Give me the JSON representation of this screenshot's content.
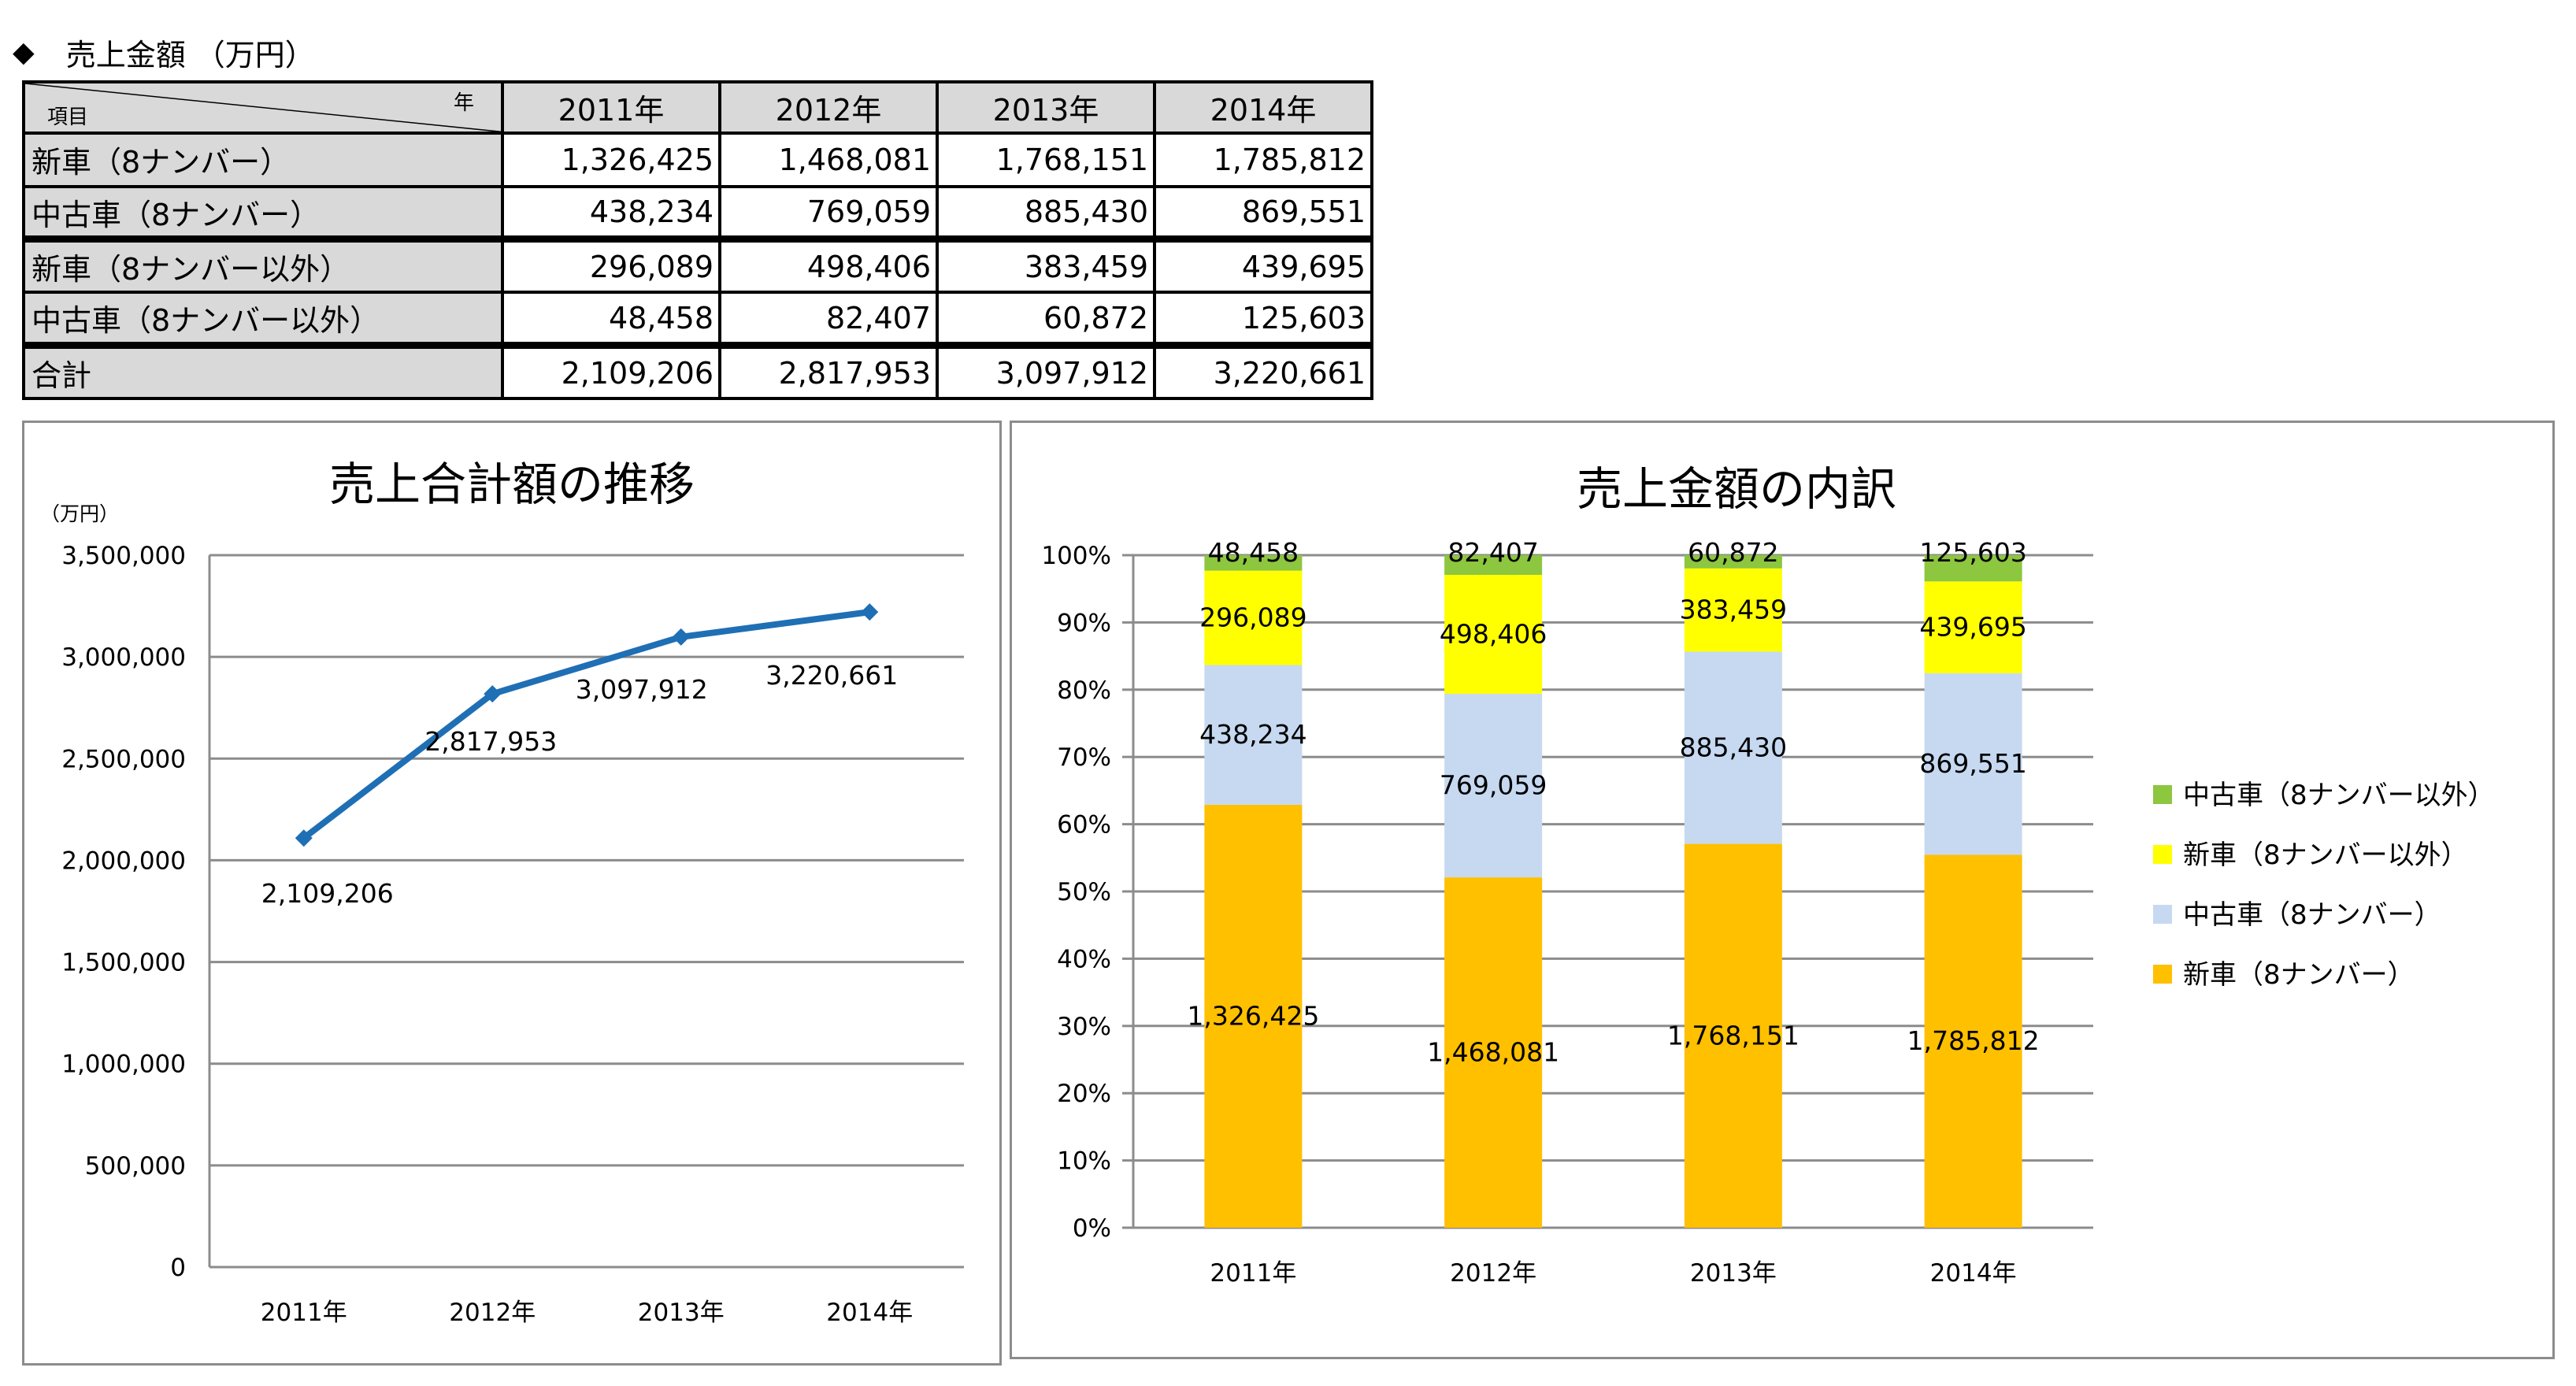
{
  "heading": {
    "marker": "◆",
    "text": "売上金額 （万円）"
  },
  "table": {
    "corner_year": "年",
    "corner_item": "項目",
    "years": [
      "2011年",
      "2012年",
      "2013年",
      "2014年"
    ],
    "rows": [
      {
        "label": "新車（8ナンバー）",
        "values": [
          "1,326,425",
          "1,468,081",
          "1,768,151",
          "1,785,812"
        ]
      },
      {
        "label": "中古車（8ナンバー）",
        "values": [
          "438,234",
          "769,059",
          "885,430",
          "869,551"
        ]
      },
      {
        "label": "新車（8ナンバー以外）",
        "values": [
          "296,089",
          "498,406",
          "383,459",
          "439,695"
        ]
      },
      {
        "label": "中古車（8ナンバー以外）",
        "values": [
          "48,458",
          "82,407",
          "60,872",
          "125,603"
        ]
      },
      {
        "label": "合計",
        "values": [
          "2,109,206",
          "2,817,953",
          "3,097,912",
          "3,220,661"
        ]
      }
    ]
  },
  "chart_data": [
    {
      "type": "line",
      "title": "売上合計額の推移",
      "ylabel": "（万円）",
      "xlabel": "",
      "categories": [
        "2011年",
        "2012年",
        "2013年",
        "2014年"
      ],
      "values": [
        2109206,
        2817953,
        3097912,
        3220661
      ],
      "data_labels": [
        "2,109,206",
        "2,817,953",
        "3,097,912",
        "3,220,661"
      ],
      "ylim": [
        0,
        3500000
      ],
      "y_ticks": [
        0,
        500000,
        1000000,
        1500000,
        2000000,
        2500000,
        3000000,
        3500000
      ],
      "y_tick_labels": [
        "0",
        "500,000",
        "1,000,000",
        "1,500,000",
        "2,000,000",
        "2,500,000",
        "3,000,000",
        "3,500,000"
      ],
      "grid": true,
      "legend": "none",
      "color": "#1f6fb5"
    },
    {
      "type": "bar",
      "stacked": "percent",
      "title": "売上金額の内訳",
      "categories": [
        "2011年",
        "2012年",
        "2013年",
        "2014年"
      ],
      "ylim": [
        0,
        100
      ],
      "y_tick_labels": [
        "0%",
        "10%",
        "20%",
        "30%",
        "40%",
        "50%",
        "60%",
        "70%",
        "80%",
        "90%",
        "100%"
      ],
      "grid": true,
      "legend": "right",
      "series": [
        {
          "name": "新車（8ナンバー）",
          "values": [
            1326425,
            1468081,
            1768151,
            1785812
          ],
          "labels": [
            "1,326,425",
            "1,468,081",
            "1,768,151",
            "1,785,812"
          ],
          "color": "#ffc000"
        },
        {
          "name": "中古車（8ナンバー）",
          "values": [
            438234,
            769059,
            885430,
            869551
          ],
          "labels": [
            "438,234",
            "769,059",
            "885,430",
            "869,551"
          ],
          "color": "#c6d9f1"
        },
        {
          "name": "新車（8ナンバー以外）",
          "values": [
            296089,
            498406,
            383459,
            439695
          ],
          "labels": [
            "296,089",
            "498,406",
            "383,459",
            "439,695"
          ],
          "color": "#ffff00"
        },
        {
          "name": "中古車（8ナンバー以外）",
          "values": [
            48458,
            82407,
            60872,
            125603
          ],
          "labels": [
            "48,458",
            "82,407",
            "60,872",
            "125,603"
          ],
          "color": "#8dc63f"
        }
      ]
    }
  ]
}
